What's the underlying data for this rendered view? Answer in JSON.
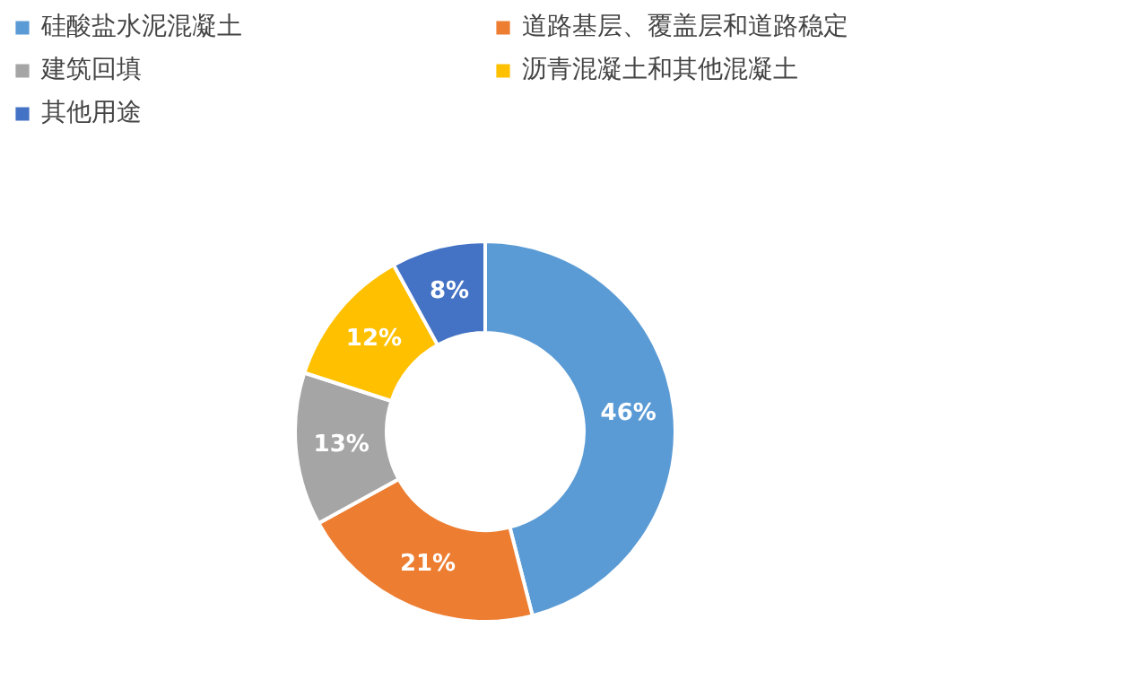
{
  "chart_data": {
    "type": "donut",
    "categories": [
      "硅酸盐水泥混凝土",
      "道路基层、覆盖层和道路稳定",
      "建筑回填",
      "沥青混凝土和其他混凝土",
      "其他用途"
    ],
    "values": [
      46,
      21,
      13,
      12,
      8
    ],
    "colors": [
      "#5b9bd5",
      "#ed7d31",
      "#a5a5a5",
      "#ffc000",
      "#4472c4"
    ],
    "value_labels": [
      "46%",
      "21%",
      "13%",
      "12%",
      "8%"
    ],
    "legend": "top"
  }
}
